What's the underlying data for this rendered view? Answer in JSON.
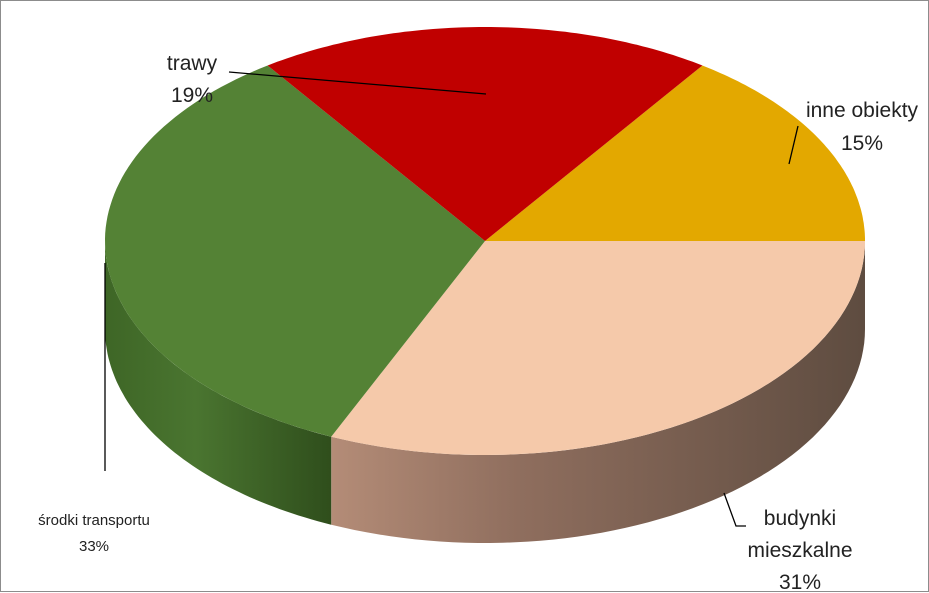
{
  "chart_data": {
    "type": "pie",
    "style": "3d",
    "title": "",
    "slices": [
      {
        "label": "inne obiekty",
        "pct_label": "15%",
        "value": 15,
        "color": "#E3A800"
      },
      {
        "label": "budynki mieszkalne",
        "label_lines": [
          "budynki",
          "mieszkalne"
        ],
        "pct_label": "31%",
        "value": 31,
        "color": "#F5C9AA"
      },
      {
        "label": "środki transportu",
        "pct_label": "33%",
        "value": 33,
        "color": "#548235"
      },
      {
        "label": "trawy",
        "pct_label": "19%",
        "value": 19,
        "color": "#C00000"
      }
    ],
    "legend": "none"
  }
}
